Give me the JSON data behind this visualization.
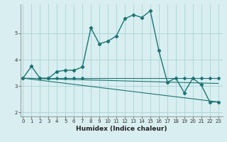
{
  "xlabel": "Humidex (Indice chaleur)",
  "bg_color": "#d8eef0",
  "grid_color": "#aad4d8",
  "line_color": "#1e7575",
  "x_ticks": [
    0,
    1,
    2,
    3,
    4,
    5,
    6,
    7,
    8,
    9,
    10,
    11,
    12,
    13,
    14,
    15,
    16,
    17,
    18,
    19,
    20,
    21,
    22,
    23
  ],
  "y_ticks": [
    2,
    3,
    4,
    5
  ],
  "ylim": [
    1.85,
    6.1
  ],
  "xlim": [
    -0.3,
    23.5
  ],
  "line1_x": [
    0,
    1,
    2,
    3,
    4,
    5,
    6,
    7,
    8,
    9,
    10,
    11,
    12,
    13,
    14,
    15,
    16,
    17,
    18,
    19,
    20,
    21,
    22,
    23
  ],
  "line1_y": [
    3.3,
    3.75,
    3.3,
    3.3,
    3.55,
    3.6,
    3.6,
    3.72,
    5.2,
    4.6,
    4.7,
    4.9,
    5.55,
    5.7,
    5.6,
    5.85,
    4.35,
    3.15,
    3.3,
    2.75,
    3.3,
    3.05,
    2.4,
    2.4
  ],
  "line2_x": [
    0,
    2,
    3,
    4,
    5,
    6,
    7,
    19,
    21,
    22,
    23
  ],
  "line2_y": [
    3.3,
    3.3,
    3.3,
    3.3,
    3.3,
    3.3,
    3.3,
    3.3,
    3.3,
    3.3,
    3.3
  ],
  "line3_x": [
    0,
    23
  ],
  "line3_y": [
    3.3,
    3.1
  ],
  "line4_x": [
    0,
    23
  ],
  "line4_y": [
    3.3,
    2.4
  ]
}
